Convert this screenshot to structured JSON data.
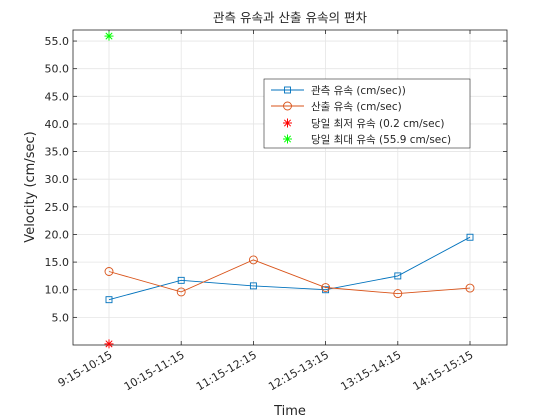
{
  "chart_data": {
    "type": "line",
    "title": "관측 유속과 산출 유속의 편차",
    "xlabel": "Time",
    "ylabel": "Velocity (cm/sec)",
    "categories": [
      "9:15-10:15",
      "10:15-11:15",
      "11:15-12:15",
      "12:15-13:15",
      "13:15-14:15",
      "14:15-15:15"
    ],
    "yticks": [
      "5.0",
      "10.0",
      "15.0",
      "20.0",
      "25.0",
      "30.0",
      "35.0",
      "40.0",
      "45.0",
      "50.0",
      "55.0"
    ],
    "ylim": [
      0,
      57
    ],
    "grid": true,
    "legend_position": "top-right",
    "series": [
      {
        "name": "관측 유속 (cm/sec))",
        "values": [
          8.2,
          11.7,
          10.7,
          10.0,
          12.5,
          19.5
        ],
        "color": "#0072BD",
        "marker": "square"
      },
      {
        "name": "산출 유속 (cm/sec)",
        "values": [
          13.3,
          9.6,
          15.4,
          10.4,
          9.3,
          10.3
        ],
        "color": "#D95319",
        "marker": "circle"
      },
      {
        "name": "당일 최저 유속 (0.2 cm/sec)",
        "x_index": 0,
        "value": 0.2,
        "color": "#FF0000",
        "marker": "star"
      },
      {
        "name": "당일 최대 유속 (55.9 cm/sec)",
        "x_index": 0,
        "value": 55.9,
        "color": "#00FF00",
        "marker": "star"
      }
    ]
  }
}
